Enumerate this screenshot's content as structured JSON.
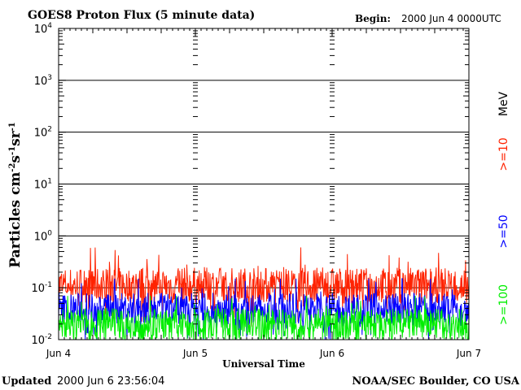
{
  "header": {
    "title": "GOES8 Proton Flux (5 minute data)",
    "begin_label": "Begin:",
    "begin_value": "2000 Jun 4 0000UTC"
  },
  "footer": {
    "updated_label": "Updated",
    "updated_value": "2000 Jun  6 23:56:04",
    "credit": "NOAA/SEC Boulder, CO USA"
  },
  "chart_data": {
    "type": "line",
    "title": "GOES8 Proton Flux (5 minute data)",
    "xlabel": "Universal Time",
    "ylabel": "Particles cm⁻²s⁻¹sr⁻¹",
    "yscale": "log",
    "ylim": [
      0.01,
      10000
    ],
    "xlim_days": [
      0,
      3
    ],
    "x_ticks": [
      "Jun 4",
      "Jun 5",
      "Jun 6",
      "Jun 7"
    ],
    "y_ticks": [
      {
        "base": "10",
        "exp": "4"
      },
      {
        "base": "10",
        "exp": "3"
      },
      {
        "base": "10",
        "exp": "2"
      },
      {
        "base": "10",
        "exp": "1"
      },
      {
        "base": "10",
        "exp": "0"
      },
      {
        "base": "10",
        "exp": "-1"
      },
      {
        "base": "10",
        "exp": "-2"
      }
    ],
    "legend_position": "right",
    "units_label": "MeV",
    "series": [
      {
        "name": ">=10",
        "color": "#ff2200",
        "typical_min": 0.05,
        "typical_max": 0.25,
        "peak": 0.6
      },
      {
        "name": ">=50",
        "color": "#0000ff",
        "typical_min": 0.02,
        "typical_max": 0.08,
        "peak": 0.15
      },
      {
        "name": ">=100",
        "color": "#00ee00",
        "typical_min": 0.01,
        "typical_max": 0.04,
        "peak": 0.07
      }
    ]
  }
}
